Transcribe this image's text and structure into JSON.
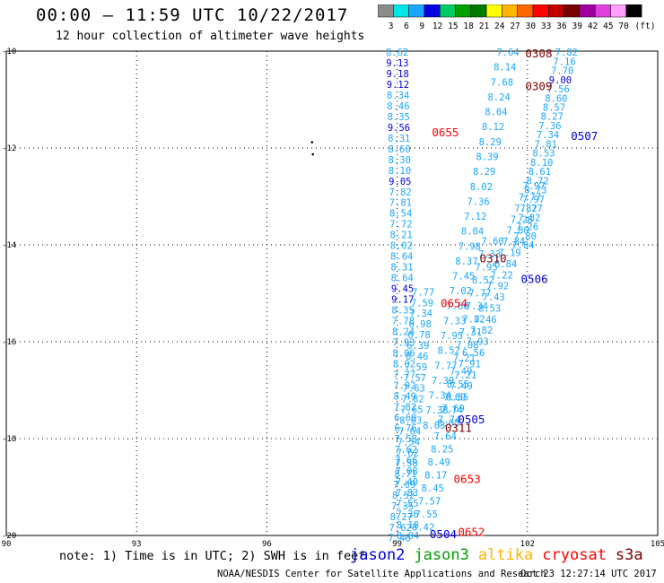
{
  "header": {
    "title": "00:00 — 11:59 UTC 10/22/2017",
    "subtitle": "12 hour collection of altimeter wave heights"
  },
  "colorbar": {
    "unit": "(ft)",
    "bins": [
      {
        "label": "3",
        "color": "#8c8c8c"
      },
      {
        "label": "6",
        "color": "#00e5e5"
      },
      {
        "label": "9",
        "color": "#1aa6ff"
      },
      {
        "label": "12",
        "color": "#0000e0"
      },
      {
        "label": "15",
        "color": "#00cc66"
      },
      {
        "label": "18",
        "color": "#00a000"
      },
      {
        "label": "21",
        "color": "#007a00"
      },
      {
        "label": "24",
        "color": "#ffff00"
      },
      {
        "label": "27",
        "color": "#ffb400"
      },
      {
        "label": "30",
        "color": "#ff6400"
      },
      {
        "label": "33",
        "color": "#ff0000"
      },
      {
        "label": "36",
        "color": "#c00000"
      },
      {
        "label": "39",
        "color": "#7a0000"
      },
      {
        "label": "42",
        "color": "#a000a0"
      },
      {
        "label": "45",
        "color": "#e040e0"
      },
      {
        "label": "70",
        "color": "#ffa0ff"
      },
      {
        "label": "",
        "color": "#000000"
      }
    ]
  },
  "map": {
    "lon_range": [
      90,
      105
    ],
    "lat_range": [
      -20,
      -10
    ],
    "lon_ticks": [
      "90",
      "93",
      "96",
      "99",
      "102",
      "105"
    ],
    "lat_ticks": [
      "-10",
      "-12",
      "-14",
      "-16",
      "-18",
      "-20"
    ],
    "island_marks": [
      {
        "lon": 97.04,
        "lat": -11.88
      },
      {
        "lon": 97.06,
        "lat": -12.13
      }
    ],
    "pass_labels": [
      {
        "text": "0308",
        "lon": 101.95,
        "lat": -10.04,
        "color": "#7a0000"
      },
      {
        "text": "0309",
        "lon": 101.95,
        "lat": -10.71,
        "color": "#7a0000"
      },
      {
        "text": "0655",
        "lon": 99.8,
        "lat": -11.67,
        "color": "#ff0000"
      },
      {
        "text": "0507",
        "lon": 103.0,
        "lat": -11.74,
        "color": "#0000e0"
      },
      {
        "text": "0310",
        "lon": 100.9,
        "lat": -14.27,
        "color": "#7a0000"
      },
      {
        "text": "0506",
        "lon": 101.85,
        "lat": -14.69,
        "color": "#0000e0"
      },
      {
        "text": "0654",
        "lon": 100.0,
        "lat": -15.19,
        "color": "#ff0000"
      },
      {
        "text": "0505",
        "lon": 100.4,
        "lat": -17.59,
        "color": "#0000e0"
      },
      {
        "text": "0311",
        "lon": 100.1,
        "lat": -17.77,
        "color": "#7a0000"
      },
      {
        "text": "0653",
        "lon": 100.3,
        "lat": -18.82,
        "color": "#ff0000"
      },
      {
        "text": "0652",
        "lon": 100.4,
        "lat": -19.92,
        "color": "#ff0000"
      },
      {
        "text": "0504",
        "lon": 99.75,
        "lat": -19.96,
        "color": "#0000e0"
      }
    ],
    "tracks": [
      {
        "name": "0655",
        "start": [
          99.0,
          -10.02
        ],
        "end": [
          99.25,
          -20.0
        ],
        "values": [
          "8.62",
          "9.13",
          "9.18",
          "9.12",
          "8.34",
          "8.46",
          "8.35",
          "9.56",
          "8.31",
          "8.60",
          "8.30",
          "8.10",
          "9.05",
          "7.82",
          "7.81",
          "8.54",
          "7.72",
          "8.21",
          "8.02",
          "8.64",
          "8.31",
          "8.64",
          "9.45",
          "9.17",
          "8.35",
          "7.78",
          "8.24",
          "7.93",
          "8.06",
          "8.02",
          "7.77",
          "7.92",
          "8.49",
          "7.82",
          "6.60",
          "6.76",
          "7.58",
          "7.62",
          "7.66",
          "7.08",
          "7.40",
          "7.83",
          "7.55",
          "7.36",
          "8.18",
          "8.04"
        ]
      },
      {
        "name": "0654",
        "start": [
          99.6,
          -14.97
        ],
        "end": [
          99.05,
          -20.05
        ],
        "values": [
          "7.77",
          "7.59",
          "7.34",
          "6.98",
          "6.78",
          "6.39",
          "8.46",
          "7.59",
          "7.57",
          "7.63",
          "7.82",
          "7.65",
          "8.03",
          "7.64",
          "7.54",
          "7.62",
          "7.58",
          "8.71",
          "7.69",
          "8.52",
          "7.35",
          "8.27",
          "7.62",
          "7.48"
        ]
      },
      {
        "name": "0653",
        "start": [
          101.2,
          -13.92
        ],
        "end": [
          99.6,
          -19.82
        ],
        "values": [
          "7.60",
          "7.33",
          "7.95",
          "8.52",
          "7.77",
          "7.34",
          "7.82",
          "7.31",
          "7.08",
          "7.21",
          "7.49",
          "8.55",
          "7.69",
          "7.74",
          "8.05",
          "7.64",
          "8.25",
          "8.49",
          "8.17",
          "8.45",
          "7.57",
          "7.55",
          "8.42"
        ]
      },
      {
        "name": "0309",
        "start": [
          101.55,
          -10.02
        ],
        "end": [
          99.85,
          -17.72
        ],
        "values": [
          "7.64",
          "8.14",
          "7.68",
          "8.24",
          "8.04",
          "8.12",
          "8.29",
          "8.39",
          "8.29",
          "8.02",
          "7.36",
          "7.12",
          "8.04",
          "7.98",
          "8.37",
          "7.45",
          "7.02",
          "7.60",
          "7.33",
          "7.95",
          "8.52",
          "7.77",
          "7.39",
          "7.34",
          "7.33",
          "8.03"
        ]
      },
      {
        "name": "0506",
        "start": [
          102.15,
          -12.78
        ],
        "end": [
          100.2,
          -17.6
        ],
        "values": [
          "7.97",
          "7.77",
          "7.82",
          "7.26",
          "7.80",
          "7.84",
          "7.19",
          "6.84",
          "7.22",
          "7.92",
          "7.43",
          "8.53",
          "7.46",
          "7.82",
          "7.93",
          "6.56",
          "7.91",
          "7.21",
          "7.49",
          "8.55",
          "7.69",
          "7.74"
        ]
      },
      {
        "name": "0308",
        "start": [
          102.9,
          -10.02
        ],
        "end": [
          101.9,
          -14.0
        ],
        "values": [
          "7.82",
          "7.16",
          "7.70",
          "9.00",
          "7.56",
          "8.60",
          "8.57",
          "8.27",
          "7.36",
          "7.34",
          "7.81",
          "8.53",
          "8.10",
          "8.61",
          "8.72",
          "8.73",
          "7.97",
          "7.77",
          "7.82",
          "7.26",
          "7.80",
          "7.84"
        ]
      }
    ]
  },
  "footer": {
    "note": "note: 1) Time is in UTC; 2) SWH is in feet",
    "satellites": [
      {
        "name": "jason2",
        "color": "#0000e0"
      },
      {
        "name": "jason3",
        "color": "#00a000"
      },
      {
        "name": "altika",
        "color": "#ffb400"
      },
      {
        "name": "cryosat",
        "color": "#ff0000"
      },
      {
        "name": "s3a",
        "color": "#7a0000"
      }
    ],
    "credit": "NOAA/NESDIS Center for Satellite Applications and Research",
    "timestamp": "Oct 23 12:27:14 UTC 2017"
  }
}
